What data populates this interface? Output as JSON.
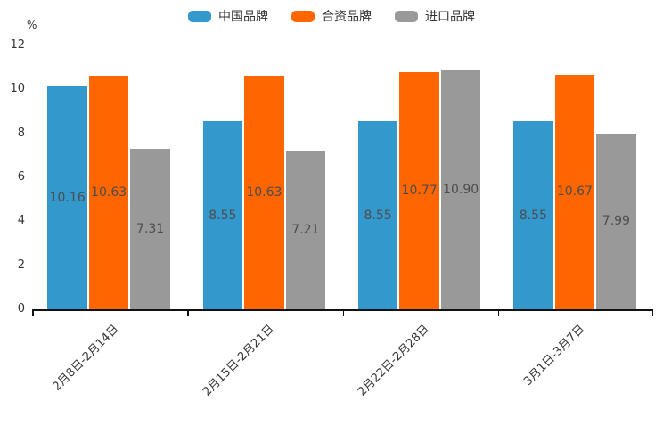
{
  "chart_data": {
    "type": "bar",
    "title": "",
    "unit_label": "%",
    "categories": [
      "2月8日-2月14日",
      "2月15日-2月21日",
      "2月22日-2月28日",
      "3月1日-3月7日"
    ],
    "series": [
      {
        "name": "中国品牌",
        "color": "#3398CC",
        "values": [
          10.16,
          8.55,
          8.55,
          8.55
        ]
      },
      {
        "name": "合资品牌",
        "color": "#FF6600",
        "values": [
          10.63,
          10.63,
          10.77,
          10.67
        ]
      },
      {
        "name": "进口品牌",
        "color": "#999999",
        "values": [
          7.31,
          7.21,
          10.9,
          7.99
        ]
      }
    ],
    "value_labels": [
      "10.16",
      "10.63",
      "7.31",
      "8.55",
      "10.63",
      "7.21",
      "8.55",
      "10.77",
      "10.90",
      "8.55",
      "10.67",
      "7.99"
    ],
    "ylim": [
      0,
      12
    ],
    "yticks": [
      0,
      2,
      4,
      6,
      8,
      10,
      12
    ],
    "grid": false,
    "legend_position": "top",
    "value_label_position": "inside-center",
    "value_label_color": "#4d4d4d",
    "axis_color": "#111111",
    "tick_text_color": "#333333"
  }
}
